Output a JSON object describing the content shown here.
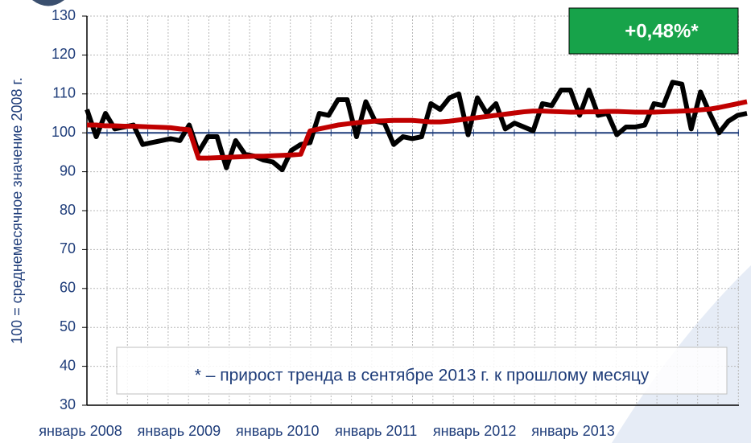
{
  "chart_data": {
    "type": "line",
    "y_axis_label": "100 = среднемесячное значение 2008 г.",
    "x_tick_labels": [
      "январь 2008",
      "январь 2009",
      "январь 2010",
      "январь 2011",
      "январь 2012",
      "январь 2013"
    ],
    "badge": "+0,48%*",
    "annotation": "* – прирост тренда в сентябре 2013 г. к прошлому месяцу",
    "ylim": [
      30,
      130
    ],
    "yticks": [
      30,
      40,
      50,
      60,
      70,
      80,
      90,
      100,
      110,
      120,
      130
    ],
    "grid": true,
    "series": [
      {
        "color": "#000000",
        "values": [
          106,
          99,
          105,
          101,
          101.5,
          102,
          97,
          97.5,
          98,
          98.5,
          98,
          102,
          95,
          99,
          99,
          91,
          98,
          94.5,
          94,
          93,
          92.5,
          90.5,
          95.5,
          97,
          97.5,
          105,
          104.5,
          108.5,
          108.5,
          99,
          108,
          103,
          102.5,
          97,
          99,
          98.5,
          99,
          107.5,
          106,
          109,
          110,
          99.5,
          109,
          105,
          107.5,
          101,
          102.5,
          101.5,
          100.5,
          107.5,
          107,
          111,
          111,
          104.5,
          111,
          104.5,
          105,
          99.5,
          101.5,
          101.5,
          102,
          107.5,
          107,
          113,
          112.5,
          101,
          110.5,
          105,
          100,
          103,
          104.5,
          105
        ]
      },
      {
        "color": "#c00000",
        "values": [
          102,
          102,
          101.8,
          101.8,
          101.7,
          101.7,
          101.6,
          101.5,
          101.4,
          101.3,
          101,
          100.8,
          93.5,
          93.5,
          93.6,
          93.7,
          93.8,
          93.9,
          94,
          94,
          94.1,
          94.2,
          94.3,
          94.5,
          100.5,
          101,
          101.5,
          102,
          102.3,
          102.6,
          102.8,
          103,
          103.1,
          103.2,
          103.2,
          103.2,
          103,
          102.8,
          102.8,
          103,
          103.3,
          103.6,
          103.9,
          104.2,
          104.5,
          104.8,
          105.1,
          105.4,
          105.6,
          105.6,
          105.5,
          105.4,
          105.3,
          105.3,
          105.4,
          105.4,
          105.5,
          105.5,
          105.4,
          105.3,
          105.3,
          105.3,
          105.4,
          105.5,
          105.6,
          105.7,
          105.9,
          106.1,
          106.5,
          107,
          107.5,
          108
        ]
      }
    ]
  }
}
